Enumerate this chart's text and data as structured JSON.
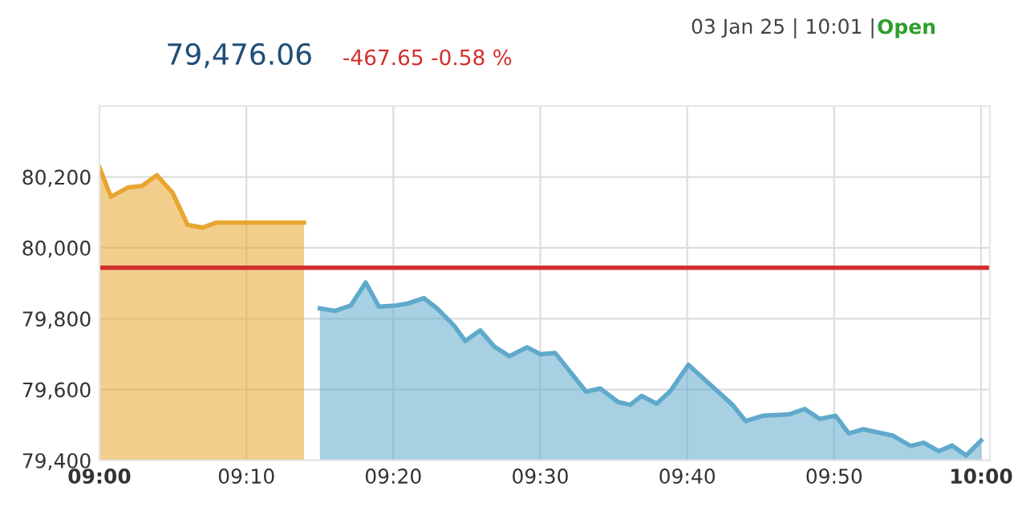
{
  "chart_data": {
    "type": "area",
    "annotations": [
      "79,476.06",
      "-467.65 -0.58 %",
      "03 Jan 25 | 10:01 |",
      "Open"
    ],
    "series": [
      {
        "color": "#e8a530",
        "x": [
          9.0,
          9.013,
          9.033,
          9.048,
          9.065,
          9.083,
          9.1,
          9.117,
          9.132,
          9.232
        ],
        "values": [
          80227,
          80144,
          80171,
          80174,
          80205,
          80155,
          80065,
          80057,
          80071,
          80071
        ]
      },
      {
        "color": "#5fa9cc",
        "x": [
          9.25,
          9.267,
          9.285,
          9.302,
          9.317,
          9.335,
          9.35,
          9.368,
          9.383,
          9.402,
          9.415,
          9.432,
          9.448,
          9.465,
          9.485,
          9.5,
          9.517,
          9.552,
          9.568,
          9.588,
          9.602,
          9.615,
          9.632,
          9.648,
          9.668,
          9.718,
          9.733,
          9.752,
          9.782,
          9.8,
          9.817,
          9.835,
          9.85,
          9.866,
          9.9,
          9.92,
          9.935,
          9.952,
          9.967,
          9.983,
          10.0
        ],
        "values": [
          79829,
          79822,
          79837,
          79902,
          79834,
          79837,
          79843,
          79858,
          79829,
          79781,
          79737,
          79767,
          79721,
          79694,
          79719,
          79700,
          79703,
          79594,
          79603,
          79565,
          79557,
          79582,
          79560,
          79597,
          79670,
          79557,
          79511,
          79526,
          79530,
          79545,
          79517,
          79526,
          79476,
          79488,
          79470,
          79441,
          79450,
          79426,
          79442,
          79414,
          79456
        ]
      }
    ],
    "xlim": [
      9.0,
      10.01
    ],
    "xticks": [
      {
        "value": 9.0,
        "label": "09:00"
      },
      {
        "value": 9.1667,
        "label": "09:10"
      },
      {
        "value": 9.3333,
        "label": "09:20"
      },
      {
        "value": 9.5,
        "label": "09:30"
      },
      {
        "value": 9.6667,
        "label": "09:40"
      },
      {
        "value": 9.8333,
        "label": "09:50"
      },
      {
        "value": 10.0,
        "label": "10:00"
      }
    ],
    "ylim": [
      79400,
      80400
    ],
    "yticks": [
      {
        "value": 79400,
        "label": "79,400"
      },
      {
        "value": 79600,
        "label": "79,600"
      },
      {
        "value": 79800,
        "label": "79,800"
      },
      {
        "value": 80000,
        "label": "80,000"
      },
      {
        "value": 80200,
        "label": "80,200"
      }
    ],
    "ref_lines": [
      {
        "axis": "y",
        "value": 79944,
        "color": "#d32f2f"
      }
    ],
    "grid": true,
    "legend": false
  }
}
